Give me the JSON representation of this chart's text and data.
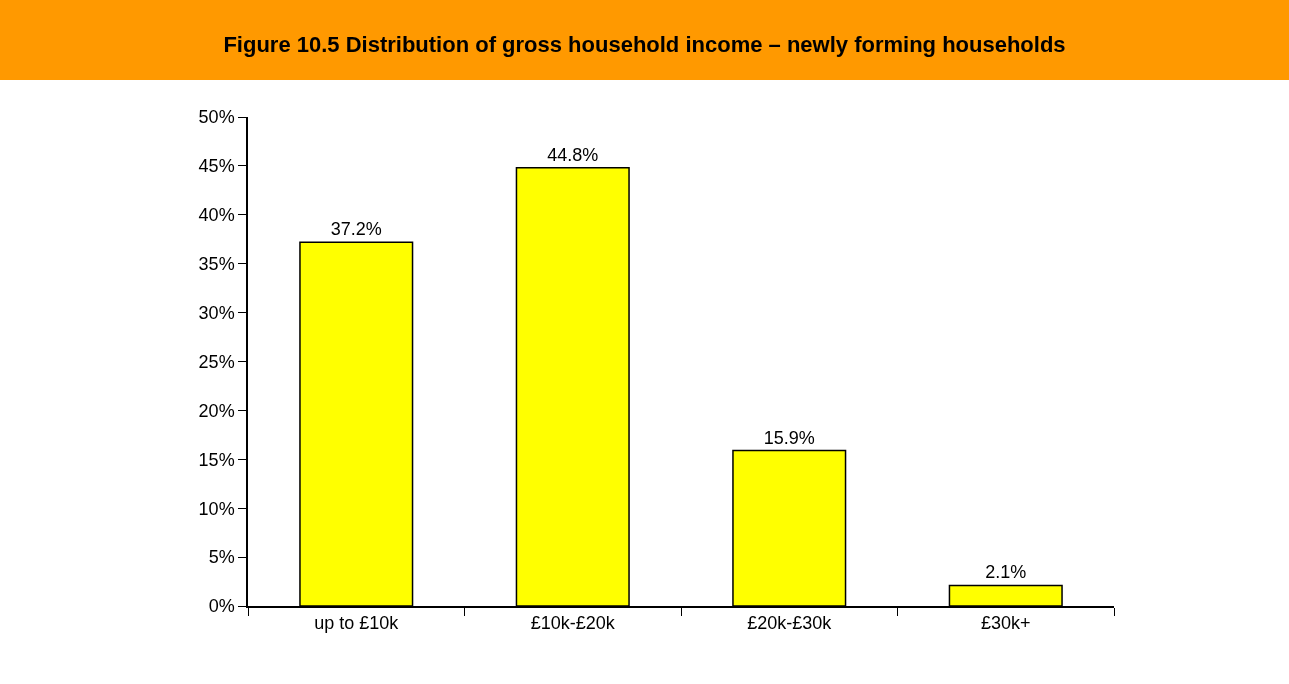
{
  "chart_data": {
    "type": "bar",
    "title": "Figure 10.5 Distribution of gross household income – newly forming households",
    "categories": [
      "up to £10k",
      "£10k-£20k",
      "£20k-£30k",
      "£30k+"
    ],
    "values": [
      37.2,
      44.8,
      15.9,
      2.1
    ],
    "value_labels": [
      "37.2%",
      "44.8%",
      "15.9%",
      "2.1%"
    ],
    "color": "#ffff00",
    "ylim": [
      0,
      50
    ],
    "yticks": [
      {
        "value": 0,
        "label": "0%"
      },
      {
        "value": 5,
        "label": "5%"
      },
      {
        "value": 10,
        "label": "10%"
      },
      {
        "value": 15,
        "label": "15%"
      },
      {
        "value": 20,
        "label": "20%"
      },
      {
        "value": 25,
        "label": "25%"
      },
      {
        "value": 30,
        "label": "30%"
      },
      {
        "value": 35,
        "label": "35%"
      },
      {
        "value": 40,
        "label": "40%"
      },
      {
        "value": 45,
        "label": "45%"
      },
      {
        "value": 50,
        "label": "50%"
      }
    ],
    "tick_labels": "xy"
  }
}
